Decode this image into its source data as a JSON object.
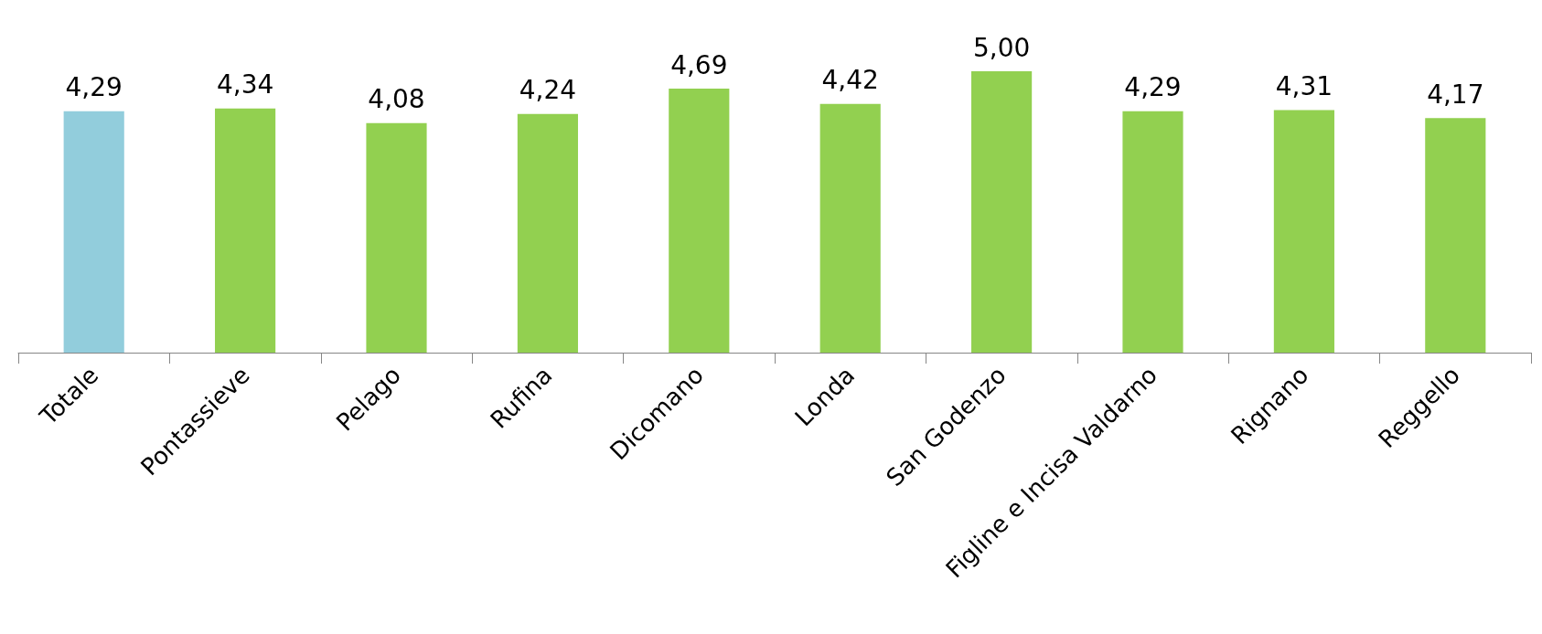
{
  "chart_data": {
    "type": "bar",
    "categories": [
      "Totale",
      "Pontassieve",
      "Pelago",
      "Rufina",
      "Dicomano",
      "Londa",
      "San Godenzo",
      "Figline e Incisa Valdarno",
      "Rignano",
      "Reggello"
    ],
    "values": [
      4.29,
      4.34,
      4.08,
      4.24,
      4.69,
      4.42,
      5.0,
      4.29,
      4.31,
      4.17
    ],
    "value_labels": [
      "4,29",
      "4,34",
      "4,08",
      "4,24",
      "4,69",
      "4,42",
      "5,00",
      "4,29",
      "4,31",
      "4,17"
    ],
    "colors": [
      "#92cddc",
      "#92d050",
      "#92d050",
      "#92d050",
      "#92d050",
      "#92d050",
      "#92d050",
      "#92d050",
      "#92d050",
      "#92d050"
    ],
    "grid": false
  }
}
